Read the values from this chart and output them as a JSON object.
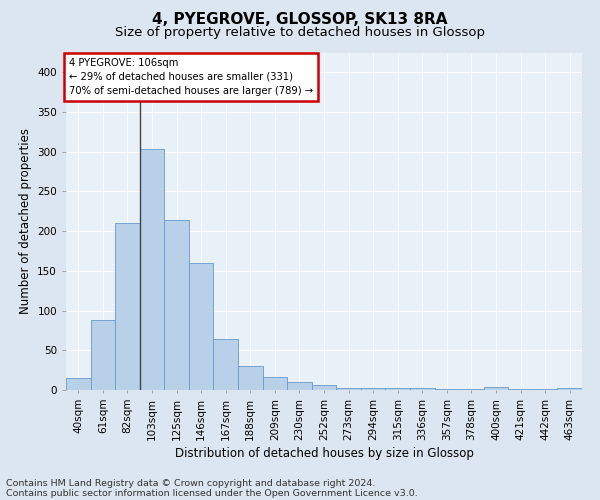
{
  "title": "4, PYEGROVE, GLOSSOP, SK13 8RA",
  "subtitle": "Size of property relative to detached houses in Glossop",
  "xlabel": "Distribution of detached houses by size in Glossop",
  "ylabel": "Number of detached properties",
  "footnote1": "Contains HM Land Registry data © Crown copyright and database right 2024.",
  "footnote2": "Contains public sector information licensed under the Open Government Licence v3.0.",
  "bar_labels": [
    "40sqm",
    "61sqm",
    "82sqm",
    "103sqm",
    "125sqm",
    "146sqm",
    "167sqm",
    "188sqm",
    "209sqm",
    "230sqm",
    "252sqm",
    "273sqm",
    "294sqm",
    "315sqm",
    "336sqm",
    "357sqm",
    "378sqm",
    "400sqm",
    "421sqm",
    "442sqm",
    "463sqm"
  ],
  "bar_values": [
    15,
    88,
    210,
    304,
    214,
    160,
    64,
    30,
    16,
    10,
    6,
    3,
    3,
    2,
    3,
    1,
    1,
    4,
    1,
    1,
    3
  ],
  "bar_color": "#b8d0e8",
  "bar_edge_color": "#6699cc",
  "highlight_line_color": "#444444",
  "annotation_text": "4 PYEGROVE: 106sqm\n← 29% of detached houses are smaller (331)\n70% of semi-detached houses are larger (789) →",
  "annotation_box_color": "#ffffff",
  "annotation_box_edge_color": "#cc0000",
  "ylim": [
    0,
    425
  ],
  "yticks": [
    0,
    50,
    100,
    150,
    200,
    250,
    300,
    350,
    400
  ],
  "bg_color": "#dce6f0",
  "plot_bg_color": "#e8f0f8",
  "grid_color": "#ffffff",
  "title_fontsize": 11,
  "subtitle_fontsize": 9.5,
  "label_fontsize": 8.5,
  "tick_fontsize": 7.5,
  "footnote_fontsize": 6.8,
  "highlight_bar_index": 2
}
